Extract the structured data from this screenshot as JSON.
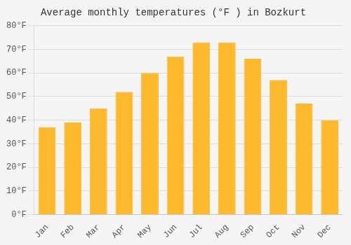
{
  "chart_data": {
    "type": "bar",
    "title": "Average monthly temperatures (°F ) in Bozkurt",
    "categories": [
      "Jan",
      "Feb",
      "Mar",
      "Apr",
      "May",
      "Jun",
      "Jul",
      "Aug",
      "Sep",
      "Oct",
      "Nov",
      "Dec"
    ],
    "values": [
      37,
      39,
      45,
      52,
      60,
      67,
      73,
      73,
      66,
      57,
      47,
      40
    ],
    "color": "#FDB92E",
    "ylim": [
      0,
      80
    ],
    "yticks": [
      {
        "value": 0,
        "label": "0°F"
      },
      {
        "value": 10,
        "label": "10°F"
      },
      {
        "value": 20,
        "label": "20°F"
      },
      {
        "value": 30,
        "label": "30°F"
      },
      {
        "value": 40,
        "label": "40°F"
      },
      {
        "value": 50,
        "label": "50°F"
      },
      {
        "value": 60,
        "label": "60°F"
      },
      {
        "value": 70,
        "label": "70°F"
      },
      {
        "value": 80,
        "label": "80°F"
      }
    ],
    "grid": true
  }
}
